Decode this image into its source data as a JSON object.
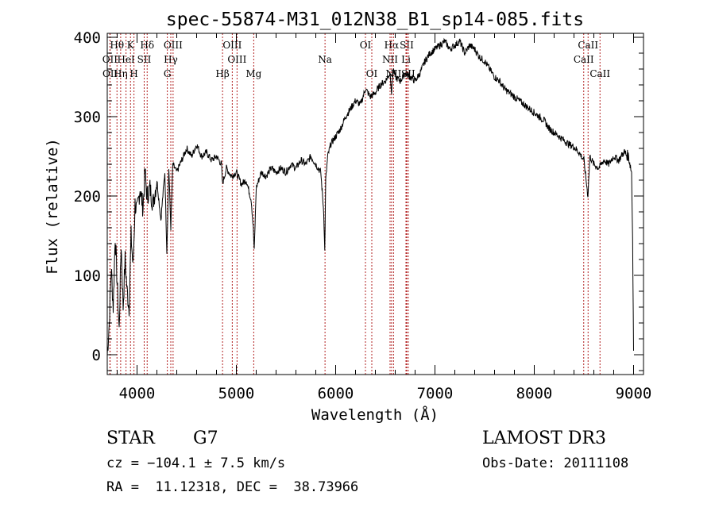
{
  "chart_data": {
    "type": "line",
    "title": "spec-55874-M31_012N38_B1_sp14-085.fits",
    "xlabel": "Wavelength (Å)",
    "ylabel": "Flux (relative)",
    "xlim": [
      3700,
      9100
    ],
    "ylim": [
      -25,
      405
    ],
    "xticks": [
      4000,
      5000,
      6000,
      7000,
      8000,
      9000
    ],
    "yticks": [
      0,
      100,
      200,
      300,
      400
    ],
    "grid": false,
    "series": [
      {
        "x": [
          3700,
          3720,
          3740,
          3760,
          3780,
          3800,
          3820,
          3840,
          3860,
          3880,
          3900,
          3920,
          3940,
          3960,
          3980,
          4000,
          4030,
          4060,
          4080,
          4100,
          4130,
          4160,
          4200,
          4240,
          4280,
          4300,
          4320,
          4340,
          4360,
          4400,
          4450,
          4500,
          4550,
          4600,
          4650,
          4700,
          4750,
          4800,
          4850,
          4860,
          4900,
          4950,
          5000,
          5050,
          5100,
          5150,
          5170,
          5180,
          5200,
          5250,
          5300,
          5350,
          5400,
          5450,
          5500,
          5550,
          5600,
          5650,
          5700,
          5750,
          5800,
          5850,
          5880,
          5890,
          5900,
          5920,
          5950,
          6000,
          6050,
          6100,
          6150,
          6200,
          6250,
          6300,
          6350,
          6400,
          6450,
          6500,
          6550,
          6563,
          6580,
          6600,
          6650,
          6700,
          6750,
          6800,
          6850,
          6900,
          6950,
          7000,
          7050,
          7100,
          7150,
          7200,
          7250,
          7300,
          7350,
          7400,
          7450,
          7500,
          7550,
          7600,
          7650,
          7700,
          7750,
          7800,
          7850,
          7900,
          7950,
          8000,
          8050,
          8100,
          8150,
          8200,
          8250,
          8300,
          8350,
          8400,
          8450,
          8500,
          8540,
          8560,
          8600,
          8650,
          8700,
          8750,
          8800,
          8850,
          8900,
          8950,
          8980,
          8990,
          9000
        ],
        "y": [
          0,
          40,
          110,
          60,
          150,
          90,
          30,
          140,
          60,
          120,
          80,
          60,
          150,
          110,
          190,
          180,
          210,
          185,
          230,
          200,
          210,
          190,
          220,
          170,
          230,
          130,
          235,
          160,
          240,
          230,
          245,
          260,
          250,
          265,
          250,
          255,
          245,
          250,
          240,
          215,
          235,
          225,
          230,
          215,
          220,
          195,
          160,
          130,
          210,
          230,
          225,
          235,
          230,
          235,
          230,
          240,
          235,
          245,
          240,
          250,
          240,
          230,
          180,
          130,
          220,
          250,
          265,
          275,
          285,
          300,
          310,
          320,
          315,
          335,
          325,
          330,
          340,
          345,
          355,
          330,
          360,
          350,
          345,
          355,
          350,
          345,
          355,
          370,
          380,
          385,
          390,
          395,
          385,
          390,
          395,
          380,
          390,
          385,
          375,
          370,
          360,
          350,
          345,
          335,
          330,
          325,
          320,
          315,
          310,
          305,
          300,
          295,
          285,
          280,
          275,
          270,
          265,
          262,
          255,
          245,
          200,
          250,
          240,
          235,
          245,
          240,
          250,
          245,
          255,
          250,
          230,
          150,
          5
        ]
      }
    ],
    "line_markers": [
      {
        "label": "Hθ",
        "x": 3798,
        "row": 0
      },
      {
        "label": "K",
        "x": 3934,
        "row": 0
      },
      {
        "label": "Hδ",
        "x": 4102,
        "row": 0
      },
      {
        "label": "OIII",
        "x": 4363,
        "row": 0
      },
      {
        "label": "OIII",
        "x": 4959,
        "row": 0
      },
      {
        "label": "OI",
        "x": 6300,
        "row": 0
      },
      {
        "label": "Hα",
        "x": 6563,
        "row": 0
      },
      {
        "label": "SII",
        "x": 6716,
        "row": 0
      },
      {
        "label": "CaII",
        "x": 8542,
        "row": 0
      },
      {
        "label": "OII",
        "x": 3727,
        "row": 1
      },
      {
        "label": "HeI",
        "x": 3889,
        "row": 1
      },
      {
        "label": "SII",
        "x": 4072,
        "row": 1
      },
      {
        "label": "Hγ",
        "x": 4340,
        "row": 1
      },
      {
        "label": "OIII",
        "x": 5007,
        "row": 1
      },
      {
        "label": "Na",
        "x": 5893,
        "row": 1
      },
      {
        "label": "NII",
        "x": 6548,
        "row": 1
      },
      {
        "label": "Li",
        "x": 6708,
        "row": 1
      },
      {
        "label": "CaII",
        "x": 8498,
        "row": 1
      },
      {
        "label": "OII",
        "x": 3729,
        "row": 2
      },
      {
        "label": "Hη",
        "x": 3835,
        "row": 2
      },
      {
        "label": "H",
        "x": 3969,
        "row": 2
      },
      {
        "label": "G",
        "x": 4305,
        "row": 2
      },
      {
        "label": "Hβ",
        "x": 4861,
        "row": 2
      },
      {
        "label": "Mg",
        "x": 5175,
        "row": 2
      },
      {
        "label": "OI",
        "x": 6364,
        "row": 2
      },
      {
        "label": "NII",
        "x": 6583,
        "row": 2
      },
      {
        "label": "SII",
        "x": 6731,
        "row": 2
      },
      {
        "label": "CaII",
        "x": 8662,
        "row": 2
      }
    ]
  },
  "info": {
    "class": "STAR",
    "subclass": "G7",
    "survey": "LAMOST DR3",
    "cz": "cz = −104.1 ± 7.5 km/s",
    "obs_date": "Obs-Date: 20111108",
    "coords": "RA =  11.12318, DEC =  38.73966"
  },
  "colors": {
    "marker_line": "#b22222",
    "spectrum": "#000000"
  }
}
